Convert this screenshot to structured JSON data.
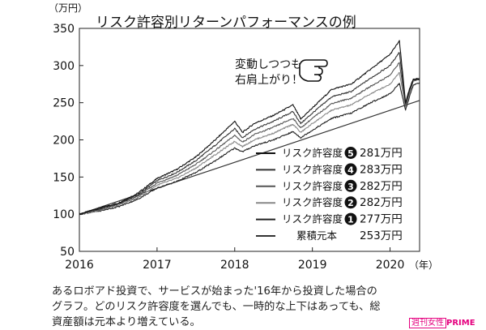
{
  "chart_data": {
    "type": "line",
    "title": "リスク許容別リターンパフォーマンスの例",
    "ylabel": "（万円）",
    "xlabel": "（年）",
    "xlim": [
      2016,
      2020.38
    ],
    "ylim": [
      50,
      350
    ],
    "x_ticks": [
      "2016",
      "2017",
      "2018",
      "2019",
      "2020"
    ],
    "y_ticks": [
      "50",
      "100",
      "150",
      "200",
      "250",
      "300",
      "350"
    ],
    "annotation": "変動しつつも\n右肩上がり！",
    "series": [
      {
        "name": "リスク許容度",
        "level": "5",
        "final_label": "281万円",
        "color": "#111111",
        "points": [
          [
            2016,
            100
          ],
          [
            2016.25,
            108
          ],
          [
            2016.5,
            115
          ],
          [
            2016.75,
            128
          ],
          [
            2017,
            148
          ],
          [
            2017.25,
            160
          ],
          [
            2017.5,
            177
          ],
          [
            2017.75,
            200
          ],
          [
            2018,
            225
          ],
          [
            2018.1,
            210
          ],
          [
            2018.25,
            222
          ],
          [
            2018.5,
            233
          ],
          [
            2018.75,
            247
          ],
          [
            2018.85,
            228
          ],
          [
            2019,
            243
          ],
          [
            2019.25,
            268
          ],
          [
            2019.5,
            275
          ],
          [
            2019.75,
            295
          ],
          [
            2020,
            315
          ],
          [
            2020.12,
            333
          ],
          [
            2020.2,
            250
          ],
          [
            2020.25,
            268
          ],
          [
            2020.3,
            282
          ],
          [
            2020.38,
            281
          ]
        ]
      },
      {
        "name": "リスク許容度",
        "level": "4",
        "final_label": "283万円",
        "color": "#333333",
        "points": [
          [
            2016,
            100
          ],
          [
            2016.25,
            107
          ],
          [
            2016.5,
            114
          ],
          [
            2016.75,
            126
          ],
          [
            2017,
            145
          ],
          [
            2017.25,
            156
          ],
          [
            2017.5,
            172
          ],
          [
            2017.75,
            193
          ],
          [
            2018,
            215
          ],
          [
            2018.1,
            203
          ],
          [
            2018.25,
            214
          ],
          [
            2018.5,
            225
          ],
          [
            2018.75,
            238
          ],
          [
            2018.85,
            222
          ],
          [
            2019,
            236
          ],
          [
            2019.25,
            258
          ],
          [
            2019.5,
            265
          ],
          [
            2019.75,
            283
          ],
          [
            2020,
            300
          ],
          [
            2020.12,
            318
          ],
          [
            2020.2,
            248
          ],
          [
            2020.25,
            266
          ],
          [
            2020.3,
            281
          ],
          [
            2020.38,
            283
          ]
        ]
      },
      {
        "name": "リスク許容度",
        "level": "3",
        "final_label": "282万円",
        "color": "#555555",
        "points": [
          [
            2016,
            100
          ],
          [
            2016.25,
            106
          ],
          [
            2016.5,
            113
          ],
          [
            2016.75,
            124
          ],
          [
            2017,
            142
          ],
          [
            2017.25,
            152
          ],
          [
            2017.5,
            167
          ],
          [
            2017.75,
            186
          ],
          [
            2018,
            206
          ],
          [
            2018.1,
            197
          ],
          [
            2018.25,
            207
          ],
          [
            2018.5,
            217
          ],
          [
            2018.75,
            229
          ],
          [
            2018.85,
            216
          ],
          [
            2019,
            229
          ],
          [
            2019.25,
            249
          ],
          [
            2019.5,
            256
          ],
          [
            2019.75,
            272
          ],
          [
            2020,
            287
          ],
          [
            2020.12,
            304
          ],
          [
            2020.2,
            246
          ],
          [
            2020.25,
            264
          ],
          [
            2020.3,
            280
          ],
          [
            2020.38,
            282
          ]
        ]
      },
      {
        "name": "リスク許容度",
        "level": "2",
        "final_label": "282万円",
        "color": "#888888",
        "points": [
          [
            2016,
            100
          ],
          [
            2016.25,
            105
          ],
          [
            2016.5,
            112
          ],
          [
            2016.75,
            122
          ],
          [
            2017,
            139
          ],
          [
            2017.25,
            148
          ],
          [
            2017.5,
            162
          ],
          [
            2017.75,
            180
          ],
          [
            2018,
            198
          ],
          [
            2018.1,
            191
          ],
          [
            2018.25,
            200
          ],
          [
            2018.5,
            209
          ],
          [
            2018.75,
            221
          ],
          [
            2018.85,
            210
          ],
          [
            2019,
            222
          ],
          [
            2019.25,
            240
          ],
          [
            2019.5,
            247
          ],
          [
            2019.75,
            262
          ],
          [
            2020,
            275
          ],
          [
            2020.12,
            291
          ],
          [
            2020.2,
            244
          ],
          [
            2020.25,
            262
          ],
          [
            2020.3,
            279
          ],
          [
            2020.38,
            282
          ]
        ]
      },
      {
        "name": "リスク許容度",
        "level": "1",
        "final_label": "277万円",
        "color": "#222222",
        "points": [
          [
            2016,
            100
          ],
          [
            2016.25,
            104
          ],
          [
            2016.5,
            110
          ],
          [
            2016.75,
            120
          ],
          [
            2017,
            135
          ],
          [
            2017.25,
            144
          ],
          [
            2017.5,
            156
          ],
          [
            2017.75,
            172
          ],
          [
            2018,
            189
          ],
          [
            2018.1,
            184
          ],
          [
            2018.25,
            192
          ],
          [
            2018.5,
            200
          ],
          [
            2018.75,
            211
          ],
          [
            2018.85,
            203
          ],
          [
            2019,
            213
          ],
          [
            2019.25,
            229
          ],
          [
            2019.5,
            236
          ],
          [
            2019.75,
            250
          ],
          [
            2020,
            262
          ],
          [
            2020.12,
            276
          ],
          [
            2020.2,
            240
          ],
          [
            2020.25,
            258
          ],
          [
            2020.3,
            274
          ],
          [
            2020.38,
            277
          ]
        ]
      },
      {
        "name": "累積元本",
        "level": "",
        "final_label": "253万円",
        "color": "#333333",
        "points": [
          [
            2016,
            100
          ],
          [
            2020.38,
            253
          ]
        ]
      }
    ]
  },
  "caption": [
    "あるロボアド投資で、サービスが始まった'16年から投資した場合の",
    "グラフ。どのリスク許容度を選んでも、一時的な上下はあっても、総",
    "資産額は元本より増えている。"
  ],
  "watermark": {
    "publisher": "週刊女性",
    "brand": "PRIME",
    "color": "#e5007f"
  }
}
